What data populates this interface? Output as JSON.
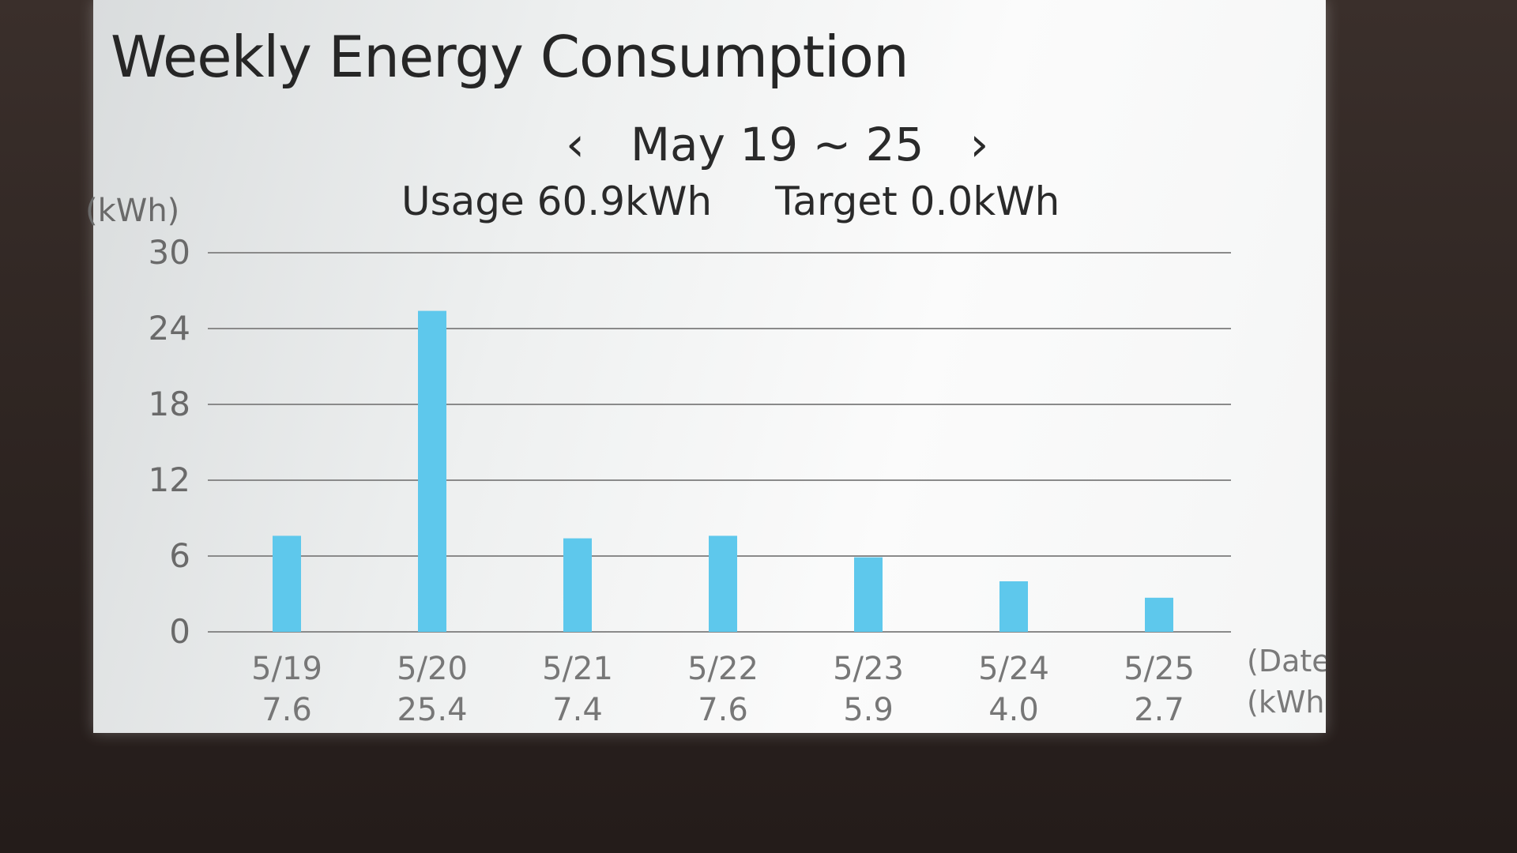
{
  "screen": {
    "title": "Weekly Energy Consumption",
    "nav": {
      "prev_icon": "chevron-left-icon",
      "next_icon": "chevron-right-icon",
      "period": "May 19 ~ 25"
    },
    "summary": {
      "usage": "Usage 60.9kWh",
      "target": "Target 0.0kWh"
    },
    "y_unit": "(kWh)",
    "x_unit": "(Date)",
    "value_unit": "(kWh)"
  },
  "chart_data": {
    "type": "bar",
    "title": "Weekly Energy Consumption",
    "xlabel": "(Date)",
    "ylabel": "(kWh)",
    "ylim": [
      0,
      30
    ],
    "yticks": [
      "0",
      "6",
      "12",
      "18",
      "24",
      "30"
    ],
    "ytick_values": [
      0,
      6,
      12,
      18,
      24,
      30
    ],
    "categories": [
      "5/19",
      "5/20",
      "5/21",
      "5/22",
      "5/23",
      "5/24",
      "5/25"
    ],
    "values": [
      7.6,
      25.4,
      7.4,
      7.6,
      5.9,
      4.0,
      2.7
    ],
    "value_labels": [
      "7.6",
      "25.4",
      "7.4",
      "7.6",
      "5.9",
      "4.0",
      "2.7"
    ],
    "grid": true,
    "bar_color": "#5ec8ec",
    "grid_color": "#8a8a8a"
  }
}
